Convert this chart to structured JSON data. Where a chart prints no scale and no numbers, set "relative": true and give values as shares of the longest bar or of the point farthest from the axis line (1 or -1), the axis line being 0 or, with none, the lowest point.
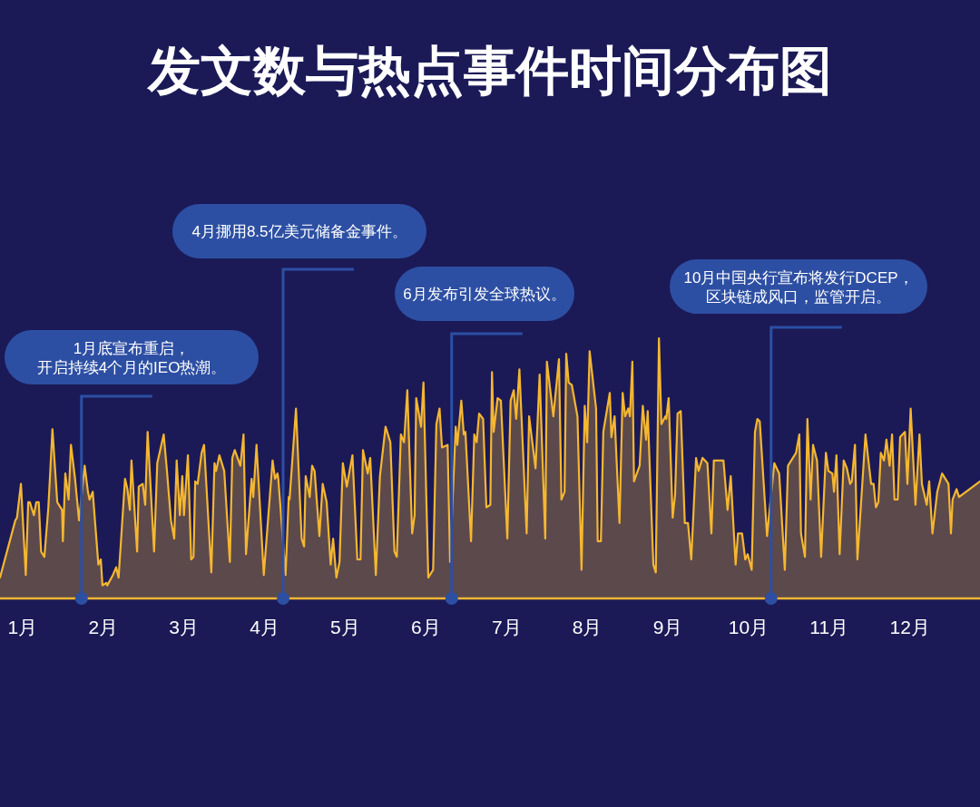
{
  "chart_data": {
    "type": "area",
    "title": "发文数与热点事件时间分布图",
    "relative": true,
    "xlim": [
      0.72,
      12.87
    ],
    "xticks": [
      {
        "value": 1,
        "label": "1月"
      },
      {
        "value": 2,
        "label": "2月"
      },
      {
        "value": 3,
        "label": "3月"
      },
      {
        "value": 4,
        "label": "4月"
      },
      {
        "value": 5,
        "label": "5月"
      },
      {
        "value": 6,
        "label": "6月"
      },
      {
        "value": 7,
        "label": "7月"
      },
      {
        "value": 8,
        "label": "8月"
      },
      {
        "value": 9,
        "label": "9月"
      },
      {
        "value": 10,
        "label": "10月"
      },
      {
        "value": 11,
        "label": "11月"
      },
      {
        "value": 12,
        "label": "12月"
      }
    ],
    "x": [
      0.72,
      0.91,
      0.93,
      0.98,
      1.04,
      1.07,
      1.09,
      1.14,
      1.17,
      1.2,
      1.23,
      1.27,
      1.32,
      1.37,
      1.43,
      1.49,
      1.5,
      1.53,
      1.57,
      1.6,
      1.65,
      1.7,
      1.77,
      1.81,
      1.83,
      1.87,
      1.94,
      1.97,
      1.99,
      2.04,
      2.05,
      2.12,
      2.16,
      2.19,
      2.27,
      2.3,
      2.33,
      2.35,
      2.42,
      2.44,
      2.49,
      2.52,
      2.55,
      2.63,
      2.67,
      2.75,
      2.79,
      2.84,
      2.88,
      2.91,
      2.95,
      2.98,
      3.0,
      3.05,
      3.09,
      3.12,
      3.14,
      3.17,
      3.22,
      3.25,
      3.34,
      3.38,
      3.4,
      3.44,
      3.5,
      3.57,
      3.6,
      3.63,
      3.7,
      3.74,
      3.77,
      3.84,
      3.86,
      3.9,
      3.99,
      4.1,
      4.13,
      4.16,
      4.17,
      4.26,
      4.3,
      4.31,
      4.39,
      4.46,
      4.49,
      4.51,
      4.56,
      4.59,
      4.62,
      4.68,
      4.72,
      4.77,
      4.82,
      4.85,
      4.89,
      4.93,
      4.97,
      5.02,
      5.09,
      5.15,
      5.19,
      5.22,
      5.28,
      5.31,
      5.38,
      5.43,
      5.5,
      5.56,
      5.61,
      5.64,
      5.69,
      5.73,
      5.77,
      5.83,
      5.86,
      5.88,
      5.94,
      5.97,
      6.03,
      6.09,
      6.13,
      6.17,
      6.2,
      6.27,
      6.3,
      6.37,
      6.39,
      6.44,
      6.47,
      6.49,
      6.56,
      6.6,
      6.63,
      6.66,
      6.71,
      6.75,
      6.8,
      6.82,
      6.84,
      6.89,
      6.93,
      7.01,
      7.05,
      7.09,
      7.12,
      7.16,
      7.25,
      7.28,
      7.36,
      7.41,
      7.48,
      7.5,
      7.58,
      7.65,
      7.68,
      7.72,
      7.74,
      7.77,
      7.81,
      7.88,
      7.93,
      7.97,
      8.0,
      8.03,
      8.11,
      8.13,
      8.17,
      8.2,
      8.28,
      8.3,
      8.34,
      8.4,
      8.44,
      8.47,
      8.51,
      8.53,
      8.56,
      8.58,
      8.65,
      8.69,
      8.73,
      8.75,
      8.82,
      8.85,
      8.89,
      8.92,
      8.97,
      8.98,
      9.01,
      9.06,
      9.09,
      9.12,
      9.16,
      9.21,
      9.25,
      9.29,
      9.35,
      9.38,
      9.43,
      9.49,
      9.54,
      9.57,
      9.69,
      9.74,
      9.78,
      9.84,
      9.87,
      9.92,
      9.96,
      9.99,
      10.04,
      10.08,
      10.11,
      10.14,
      10.23,
      10.32,
      10.38,
      10.45,
      10.49,
      10.59,
      10.63,
      10.65,
      10.7,
      10.73,
      10.77,
      10.8,
      10.85,
      10.9,
      10.96,
      10.99,
      11.04,
      11.06,
      11.09,
      11.13,
      11.18,
      11.22,
      11.26,
      11.28,
      11.32,
      11.35,
      11.45,
      11.52,
      11.55,
      11.58,
      11.61,
      11.64,
      11.68,
      11.71,
      11.75,
      11.78,
      11.81,
      11.85,
      11.88,
      11.94,
      11.97,
      12.01,
      12.07,
      12.12,
      12.15,
      12.21,
      12.24,
      12.28,
      12.34,
      12.4,
      12.48,
      12.51,
      12.53,
      12.58,
      12.61,
      12.87
    ],
    "series": [
      {
        "color": "#f5b731",
        "values": [
          0.08,
          0.3,
          0.31,
          0.44,
          0.09,
          0.37,
          0.37,
          0.32,
          0.37,
          0.37,
          0.18,
          0.16,
          0.35,
          0.65,
          0.37,
          0.34,
          0.22,
          0.48,
          0.38,
          0.59,
          0.46,
          0.3,
          0.51,
          0.41,
          0.38,
          0.41,
          0.13,
          0.15,
          0.05,
          0.06,
          0.05,
          0.09,
          0.12,
          0.08,
          0.46,
          0.42,
          0.34,
          0.53,
          0.18,
          0.43,
          0.44,
          0.36,
          0.64,
          0.18,
          0.52,
          0.63,
          0.49,
          0.3,
          0.23,
          0.53,
          0.32,
          0.47,
          0.32,
          0.55,
          0.15,
          0.16,
          0.45,
          0.44,
          0.56,
          0.59,
          0.1,
          0.52,
          0.49,
          0.55,
          0.49,
          0.14,
          0.54,
          0.57,
          0.51,
          0.63,
          0.17,
          0.46,
          0.39,
          0.59,
          0.09,
          0.53,
          0.46,
          0.48,
          0.46,
          0.09,
          0.39,
          0.38,
          0.73,
          0.23,
          0.2,
          0.47,
          0.39,
          0.51,
          0.49,
          0.24,
          0.44,
          0.37,
          0.13,
          0.23,
          0.08,
          0.14,
          0.52,
          0.43,
          0.55,
          0.15,
          0.15,
          0.57,
          0.48,
          0.54,
          0.09,
          0.47,
          0.66,
          0.6,
          0.18,
          0.16,
          0.63,
          0.6,
          0.8,
          0.25,
          0.32,
          0.77,
          0.66,
          0.83,
          0.08,
          0.11,
          0.67,
          0.73,
          0.58,
          0.59,
          0.14,
          0.66,
          0.59,
          0.76,
          0.63,
          0.64,
          0.22,
          0.63,
          0.6,
          0.71,
          0.69,
          0.35,
          0.36,
          0.87,
          0.64,
          0.77,
          0.76,
          0.23,
          0.76,
          0.8,
          0.69,
          0.88,
          0.25,
          0.7,
          0.5,
          0.86,
          0.23,
          0.91,
          0.7,
          0.92,
          0.38,
          0.41,
          0.94,
          0.83,
          0.82,
          0.7,
          0.11,
          0.74,
          0.6,
          0.95,
          0.73,
          0.22,
          0.22,
          0.64,
          0.79,
          0.62,
          0.7,
          0.29,
          0.79,
          0.7,
          0.73,
          0.7,
          0.91,
          0.45,
          0.51,
          0.74,
          0.61,
          0.72,
          0.13,
          0.1,
          1,
          0.67,
          0.7,
          0.69,
          0.77,
          0.31,
          0.4,
          0.71,
          0.72,
          0.29,
          0.29,
          0.15,
          0.54,
          0.49,
          0.54,
          0.52,
          0.25,
          0.53,
          0.53,
          0.34,
          0.47,
          0.13,
          0.25,
          0.25,
          0.15,
          0.17,
          0.11,
          0.64,
          0.69,
          0.68,
          0.24,
          0.52,
          0.48,
          0.11,
          0.51,
          0.56,
          0.63,
          0.25,
          0.16,
          0.69,
          0.38,
          0.59,
          0.53,
          0.16,
          0.56,
          0.49,
          0.48,
          0.41,
          0.55,
          0.17,
          0.53,
          0.5,
          0.44,
          0.45,
          0.59,
          0.15,
          0.63,
          0.44,
          0.44,
          0.35,
          0.37,
          0.56,
          0.53,
          0.61,
          0.51,
          0.63,
          0.38,
          0.38,
          0.62,
          0.64,
          0.44,
          0.73,
          0.36,
          0.63,
          0.44,
          0.36,
          0.45,
          0.25,
          0.41,
          0.48,
          0.44,
          0.25,
          0.38,
          0.42,
          0.39,
          0.45
        ]
      }
    ],
    "ref_lines": [
      {
        "axis": "x",
        "value": 1.73,
        "label": "1月底宣布重启，开启持续4个月的IEO热潮。",
        "color": "#2d4fa3"
      },
      {
        "axis": "x",
        "value": 4.23,
        "label": "4月挪用8.5亿美元储备金事件。",
        "color": "#2d4fa3"
      },
      {
        "axis": "x",
        "value": 6.32,
        "label": "6月发布引发全球热议。",
        "color": "#2d4fa3"
      },
      {
        "axis": "x",
        "value": 10.28,
        "label": "10月中国央行宣布将发行DCEP，区块链成风口，监管开启。",
        "color": "#2d4fa3"
      }
    ]
  }
}
